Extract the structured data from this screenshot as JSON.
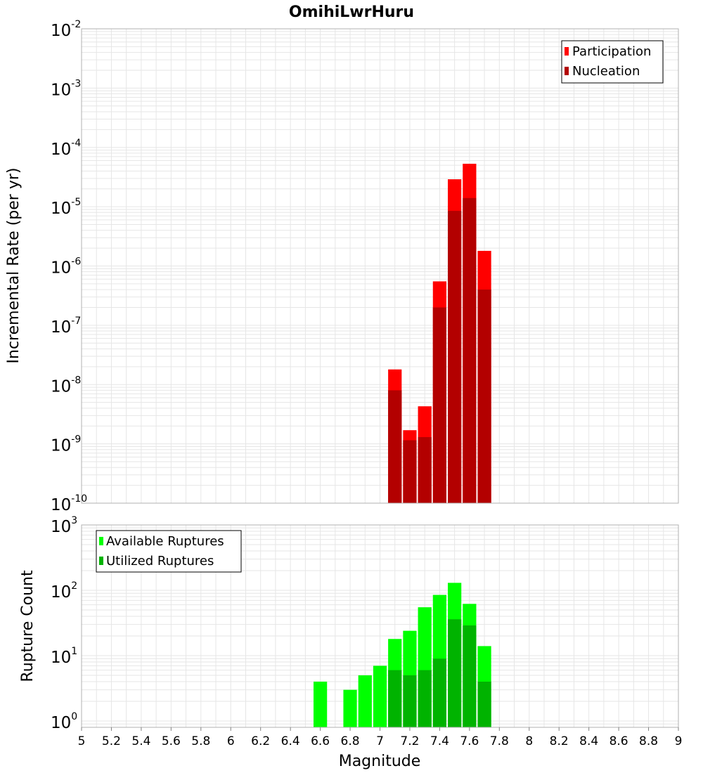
{
  "title": "OmihiLwrHuru",
  "xlabel": "Magnitude",
  "x_ticks": [
    "5",
    "5.2",
    "5.4",
    "5.6",
    "5.8",
    "6",
    "6.2",
    "6.4",
    "6.6",
    "6.8",
    "7",
    "7.2",
    "7.4",
    "7.6",
    "7.8",
    "8",
    "8.2",
    "8.4",
    "8.6",
    "8.8",
    "9"
  ],
  "colors": {
    "participation": "#ff0000",
    "nucleation": "#b30000",
    "available": "#00ff00",
    "utilized": "#00b300",
    "grid": "#e6e6e6",
    "frame": "#b0b0b0"
  },
  "chart_data": [
    {
      "type": "bar",
      "panel": "top",
      "ylabel": "Incremental Rate (per yr)",
      "yscale": "log",
      "ylim": [
        1e-10,
        0.01
      ],
      "xlim": [
        5,
        9
      ],
      "y_tick_exponents": [
        "-10",
        "-9",
        "-8",
        "-7",
        "-6",
        "-5",
        "-4",
        "-3",
        "-2"
      ],
      "bin_width": 0.1,
      "legend": {
        "position": "top-right",
        "entries": [
          "Participation",
          "Nucleation"
        ]
      },
      "x": [
        7.1,
        7.2,
        7.3,
        7.4,
        7.5,
        7.6,
        7.7
      ],
      "series": [
        {
          "name": "Participation",
          "values": [
            1.8e-08,
            1.7e-09,
            4.3e-09,
            5.5e-07,
            2.9e-05,
            5.3e-05,
            1.8e-06
          ]
        },
        {
          "name": "Nucleation",
          "values": [
            8e-09,
            1.15e-09,
            1.3e-09,
            2e-07,
            8.5e-06,
            1.4e-05,
            4e-07
          ]
        }
      ]
    },
    {
      "type": "bar",
      "panel": "bottom",
      "ylabel": "Rupture Count",
      "yscale": "log",
      "ylim": [
        0.8,
        1000
      ],
      "xlim": [
        5,
        9
      ],
      "y_tick_exponents": [
        "0",
        "1",
        "2",
        "3"
      ],
      "bin_width": 0.1,
      "legend": {
        "position": "top-left",
        "entries": [
          "Available Ruptures",
          "Utilized Ruptures"
        ]
      },
      "x": [
        6.6,
        6.8,
        6.9,
        7.0,
        7.1,
        7.2,
        7.3,
        7.4,
        7.5,
        7.6,
        7.7
      ],
      "series": [
        {
          "name": "Available Ruptures",
          "values": [
            4,
            3,
            5,
            7,
            18,
            24,
            55,
            85,
            130,
            62,
            14
          ]
        },
        {
          "name": "Utilized Ruptures",
          "values": [
            0,
            0,
            0,
            0,
            6,
            5,
            6,
            9,
            36,
            29,
            4
          ]
        }
      ]
    }
  ]
}
